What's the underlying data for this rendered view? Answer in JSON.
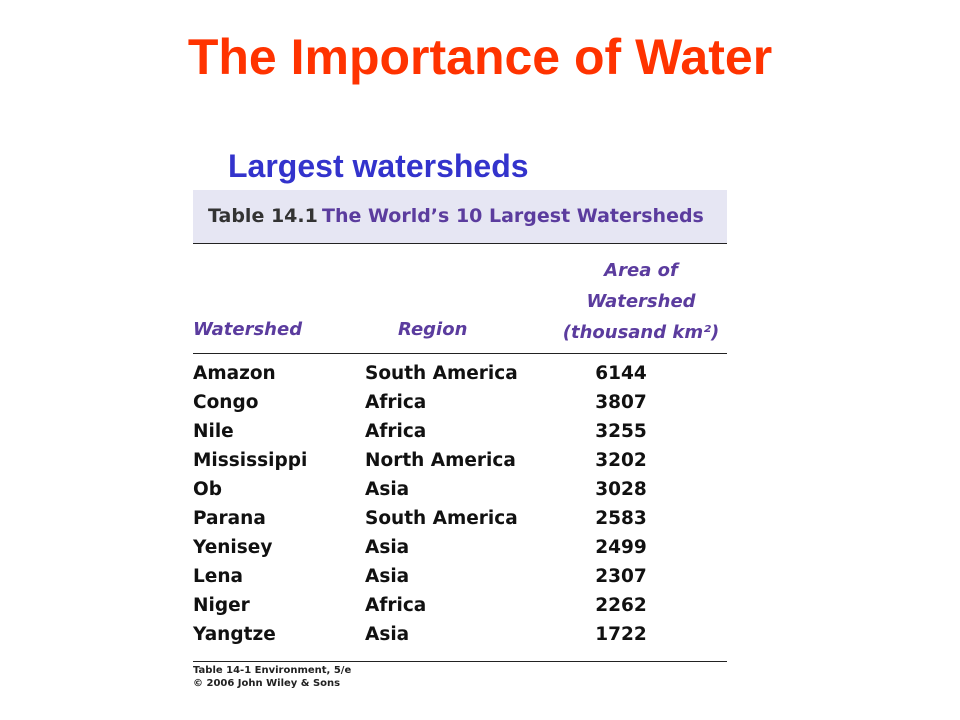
{
  "title": "The Importance of Water",
  "subtitle": "Largest watersheds",
  "table": {
    "label": "Table 14.1",
    "caption": "The World’s 10 Largest Watersheds",
    "headers": [
      "Watershed",
      "Region",
      "Area of Watershed (thousand km²)"
    ],
    "rows": [
      [
        "Amazon",
        "South America",
        6144
      ],
      [
        "Congo",
        "Africa",
        3807
      ],
      [
        "Nile",
        "Africa",
        3255
      ],
      [
        "Mississippi",
        "North America",
        3202
      ],
      [
        "Ob",
        "Asia",
        3028
      ],
      [
        "Parana",
        "South America",
        2583
      ],
      [
        "Yenisey",
        "Asia",
        2499
      ],
      [
        "Lena",
        "Asia",
        2307
      ],
      [
        "Niger",
        "Africa",
        2262
      ],
      [
        "Yangtze",
        "Asia",
        1722
      ]
    ],
    "source": [
      "Table 14-1 Environment, 5/e",
      "© 2006 John Wiley & Sons"
    ]
  }
}
